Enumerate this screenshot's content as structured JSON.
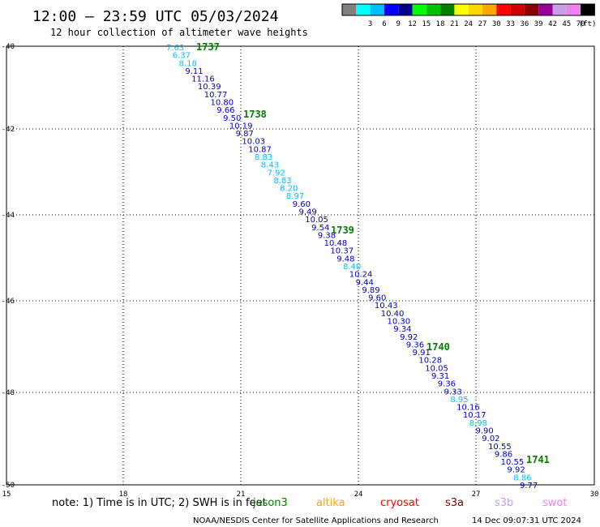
{
  "header": {
    "title": "12:00 – 23:59 UTC 05/03/2024",
    "subtitle": "12 hour collection of altimeter wave heights"
  },
  "legend": {
    "unit": "(ft)",
    "bins": [
      {
        "color": "#808080",
        "label": ""
      },
      {
        "color": "#00ffff",
        "label": "3"
      },
      {
        "color": "#00bfff",
        "label": "6"
      },
      {
        "color": "#0000ff",
        "label": "9"
      },
      {
        "color": "#00008b",
        "label": "12"
      },
      {
        "color": "#00ff00",
        "label": "15"
      },
      {
        "color": "#00c000",
        "label": "18"
      },
      {
        "color": "#008000",
        "label": "21"
      },
      {
        "color": "#ffff00",
        "label": "24"
      },
      {
        "color": "#ffd700",
        "label": "27"
      },
      {
        "color": "#ffa500",
        "label": "30"
      },
      {
        "color": "#ff0000",
        "label": "33"
      },
      {
        "color": "#cc0000",
        "label": "36"
      },
      {
        "color": "#8b0000",
        "label": "39"
      },
      {
        "color": "#990099",
        "label": "42"
      },
      {
        "color": "#c8a0e8",
        "label": "45"
      },
      {
        "color": "#ee82ee",
        "label": "70"
      },
      {
        "color": "#000000",
        "label": ""
      }
    ]
  },
  "axes": {
    "lon_ticks": [
      "15",
      "18",
      "21",
      "24",
      "27",
      "30"
    ],
    "lat_ticks": [
      "-40",
      "-42",
      "-44",
      "-46",
      "-48",
      "-50"
    ]
  },
  "passes": [
    "1737",
    "1738",
    "1739",
    "1740",
    "1741"
  ],
  "heights": [
    {
      "v": "7.63",
      "c": "#00bfff"
    },
    {
      "v": "6.37",
      "c": "#00bfff"
    },
    {
      "v": "8.18",
      "c": "#00bfff"
    },
    {
      "v": "9.11",
      "c": "#0000cd"
    },
    {
      "v": "11.16",
      "c": "#0000cd"
    },
    {
      "v": "10.39",
      "c": "#0000cd"
    },
    {
      "v": "10.77",
      "c": "#0000cd"
    },
    {
      "v": "10.80",
      "c": "#0000cd"
    },
    {
      "v": "9.66",
      "c": "#0000cd"
    },
    {
      "v": "9.50",
      "c": "#0000cd"
    },
    {
      "v": "10.19",
      "c": "#0000cd"
    },
    {
      "v": "9.87",
      "c": "#0000cd"
    },
    {
      "v": "10.03",
      "c": "#0000cd"
    },
    {
      "v": "10.87",
      "c": "#0000cd"
    },
    {
      "v": "8.83",
      "c": "#00bfff"
    },
    {
      "v": "8.43",
      "c": "#00bfff"
    },
    {
      "v": "7.92",
      "c": "#00bfff"
    },
    {
      "v": "8.83",
      "c": "#00bfff"
    },
    {
      "v": "8.20",
      "c": "#00bfff"
    },
    {
      "v": "8.97",
      "c": "#00bfff"
    },
    {
      "v": "9.60",
      "c": "#0000cd"
    },
    {
      "v": "9.49",
      "c": "#0000cd"
    },
    {
      "v": "10.05",
      "c": "#0000cd"
    },
    {
      "v": "9.54",
      "c": "#0000cd"
    },
    {
      "v": "9.38",
      "c": "#0000cd"
    },
    {
      "v": "10.48",
      "c": "#0000cd"
    },
    {
      "v": "10.37",
      "c": "#0000cd"
    },
    {
      "v": "9.48",
      "c": "#0000cd"
    },
    {
      "v": "8.40",
      "c": "#00bfff"
    },
    {
      "v": "10.24",
      "c": "#0000cd"
    },
    {
      "v": "9.44",
      "c": "#0000cd"
    },
    {
      "v": "9.89",
      "c": "#0000cd"
    },
    {
      "v": "9.60",
      "c": "#0000cd"
    },
    {
      "v": "10.43",
      "c": "#0000cd"
    },
    {
      "v": "10.40",
      "c": "#0000cd"
    },
    {
      "v": "10.30",
      "c": "#0000cd"
    },
    {
      "v": "9.34",
      "c": "#0000cd"
    },
    {
      "v": "9.92",
      "c": "#0000cd"
    },
    {
      "v": "9.36",
      "c": "#0000cd"
    },
    {
      "v": "9.91",
      "c": "#0000cd"
    },
    {
      "v": "10.28",
      "c": "#0000cd"
    },
    {
      "v": "10.05",
      "c": "#0000cd"
    },
    {
      "v": "9.31",
      "c": "#0000cd"
    },
    {
      "v": "9.36",
      "c": "#0000cd"
    },
    {
      "v": "9.33",
      "c": "#0000cd"
    },
    {
      "v": "8.95",
      "c": "#00bfff"
    },
    {
      "v": "10.16",
      "c": "#0000cd"
    },
    {
      "v": "10.17",
      "c": "#0000cd"
    },
    {
      "v": "8.98",
      "c": "#00bfff"
    },
    {
      "v": "9.90",
      "c": "#0000cd"
    },
    {
      "v": "9.02",
      "c": "#0000cd"
    },
    {
      "v": "10.55",
      "c": "#0000cd"
    },
    {
      "v": "9.86",
      "c": "#0000cd"
    },
    {
      "v": "10.55",
      "c": "#0000cd"
    },
    {
      "v": "9.92",
      "c": "#0000cd"
    },
    {
      "v": "8.86",
      "c": "#00bfff"
    },
    {
      "v": "9.77",
      "c": "#0000cd"
    }
  ],
  "note": "note: 1) Time is in UTC; 2) SWH is in feet",
  "satellites": [
    {
      "name": "jason3",
      "color": "#008000"
    },
    {
      "name": "altika",
      "color": "#ffa500"
    },
    {
      "name": "cryosat",
      "color": "#ff0000"
    },
    {
      "name": "s3a",
      "color": "#8b0000"
    },
    {
      "name": "s3b",
      "color": "#c8a0e8"
    },
    {
      "name": "swot",
      "color": "#ee82ee"
    }
  ],
  "footer": {
    "credit": "NOAA/NESDIS Center for Satellite Applications and Research",
    "timestamp": "14 Dec 09:07:31 UTC 2024"
  }
}
